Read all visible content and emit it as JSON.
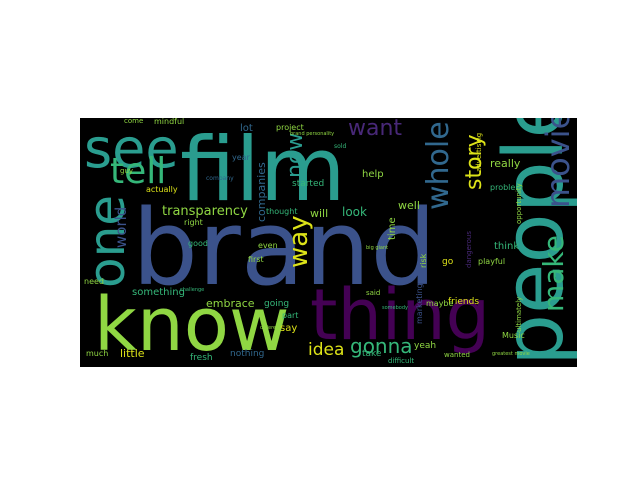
{
  "words": {
    "brand": "brand",
    "film": "film",
    "people": "people",
    "know": "know",
    "thing": "thing",
    "see": "see",
    "one": "one",
    "tell": "tell",
    "movie": "movie",
    "whole": "whole",
    "make": "make",
    "want": "want",
    "now": "now",
    "story": "story",
    "way": "way",
    "gonna": "gonna",
    "idea": "idea",
    "transparency": "transparency",
    "world": "world",
    "really": "really",
    "look": "look",
    "help": "help",
    "will": "will",
    "well": "well",
    "companies": "companies",
    "lot": "lot",
    "actually": "actually",
    "come": "come",
    "mindful": "mindful",
    "guy": "guy",
    "year": "year",
    "project": "project",
    "company": "company",
    "started": "started",
    "thought": "thought",
    "time": "time",
    "go": "go",
    "think": "think",
    "playful": "playful",
    "friends": "friends",
    "maybe": "maybe",
    "yeah": "yeah",
    "wanted": "wanted",
    "take": "take",
    "difficult": "difficult",
    "music": "Music",
    "problem": "problem",
    "opportunity": "opportunity",
    "ultimately": "ultimately",
    "advertising": "advertising",
    "dangerous": "dangerous",
    "marketing": "marketing",
    "risk": "risk",
    "said": "said",
    "part": "part",
    "say": "say",
    "embrace": "embrace",
    "something": "something",
    "going": "going",
    "first": "first",
    "even": "even",
    "good": "good",
    "right": "right",
    "need": "need",
    "little": "little",
    "fresh": "fresh",
    "nothing": "nothing",
    "much": "much",
    "sold": "sold",
    "brand_personality": "brand personality",
    "greatest_movie": "greatest movie",
    "big_giant": "big giant",
    "somebody": "somebody",
    "different": "different",
    "challenge": "challenge"
  },
  "colors": {
    "teal": "#2a9d8f",
    "green": "#35b779",
    "lime": "#90d743",
    "yellow": "#dde318",
    "blue": "#3b528b",
    "indigo": "#414487",
    "purple": "#440154",
    "violet": "#482878",
    "aqua": "#21918c",
    "seafoam": "#22a884",
    "slate": "#31688e"
  }
}
